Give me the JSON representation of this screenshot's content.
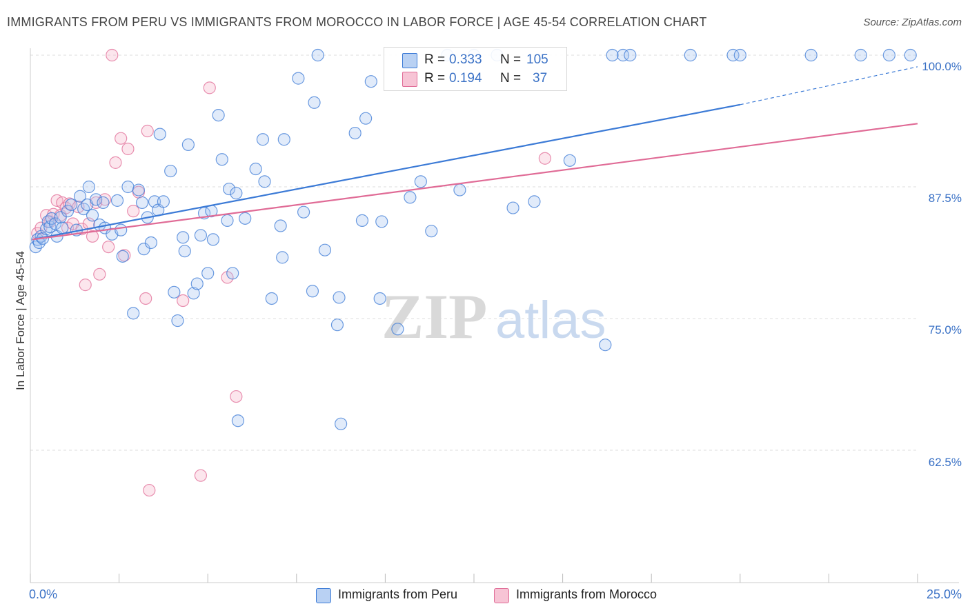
{
  "title": "IMMIGRANTS FROM PERU VS IMMIGRANTS FROM MOROCCO IN LABOR FORCE | AGE 45-54 CORRELATION CHART",
  "source": "Source: ZipAtlas.com",
  "watermark": {
    "zip": "ZIP",
    "atlas": "atlas"
  },
  "legend": {
    "peru": {
      "r_label": "R =",
      "r_value": "0.333",
      "n_label": "N =",
      "n_value": "105"
    },
    "morocco": {
      "r_label": "R =",
      "r_value": "0.194",
      "n_label": "N =",
      "n_value": "37"
    }
  },
  "colors": {
    "peru": "#3b7ad6",
    "peru_fill": "#a9c6f0",
    "morocco": "#e06b96",
    "morocco_fill": "#f5b8cc",
    "tick_text": "#3b72c6"
  },
  "chart_data": {
    "type": "scatter",
    "title": "IMMIGRANTS FROM PERU VS IMMIGRANTS FROM MOROCCO IN LABOR FORCE | AGE 45-54 CORRELATION CHART",
    "xlabel": "",
    "ylabel": "In Labor Force | Age 45-54",
    "xlim": [
      0,
      25
    ],
    "ylim": [
      50.5,
      101
    ],
    "x_tick_labels": [
      "0.0%",
      "25.0%"
    ],
    "y_ticks": [
      62.5,
      75.0,
      87.5,
      100.0
    ],
    "y_tick_labels": [
      "62.5%",
      "75.0%",
      "87.5%",
      "100.0%"
    ],
    "grid": true,
    "legend_position": "top-center",
    "series": [
      {
        "name": "Immigrants from Peru",
        "trend": {
          "x0": 0.05,
          "y0": 82.5,
          "x1": 20,
          "y1": 95.3,
          "dash_to_x": 25,
          "dash_to_y": 98.9
        },
        "points": [
          [
            0.15,
            81.8
          ],
          [
            0.2,
            82.5
          ],
          [
            0.25,
            82.2
          ],
          [
            0.3,
            82.8
          ],
          [
            0.35,
            82.6
          ],
          [
            0.45,
            83.5
          ],
          [
            0.5,
            84.2
          ],
          [
            0.55,
            83.7
          ],
          [
            0.6,
            84.5
          ],
          [
            0.7,
            84.0
          ],
          [
            0.75,
            82.8
          ],
          [
            0.85,
            84.6
          ],
          [
            0.9,
            83.6
          ],
          [
            1.05,
            85.2
          ],
          [
            1.15,
            85.8
          ],
          [
            1.3,
            83.4
          ],
          [
            1.4,
            86.6
          ],
          [
            1.5,
            85.4
          ],
          [
            1.6,
            85.8
          ],
          [
            1.65,
            87.5
          ],
          [
            1.75,
            84.8
          ],
          [
            1.85,
            86.3
          ],
          [
            1.95,
            83.9
          ],
          [
            2.05,
            86.0
          ],
          [
            2.1,
            83.6
          ],
          [
            2.3,
            83.0
          ],
          [
            2.45,
            86.2
          ],
          [
            2.55,
            83.4
          ],
          [
            2.6,
            80.9
          ],
          [
            2.75,
            87.5
          ],
          [
            2.9,
            75.5
          ],
          [
            3.05,
            87.2
          ],
          [
            3.15,
            86.0
          ],
          [
            3.2,
            81.6
          ],
          [
            3.3,
            84.6
          ],
          [
            3.4,
            82.2
          ],
          [
            3.5,
            86.1
          ],
          [
            3.6,
            85.3
          ],
          [
            3.65,
            92.5
          ],
          [
            3.75,
            86.1
          ],
          [
            3.95,
            89.0
          ],
          [
            4.05,
            77.5
          ],
          [
            4.15,
            74.8
          ],
          [
            4.3,
            82.7
          ],
          [
            4.35,
            81.4
          ],
          [
            4.45,
            91.5
          ],
          [
            4.6,
            77.4
          ],
          [
            4.7,
            78.3
          ],
          [
            4.8,
            82.9
          ],
          [
            4.9,
            85.0
          ],
          [
            5.0,
            79.3
          ],
          [
            5.1,
            85.2
          ],
          [
            5.15,
            82.5
          ],
          [
            5.3,
            94.3
          ],
          [
            5.4,
            90.1
          ],
          [
            5.55,
            84.3
          ],
          [
            5.6,
            87.3
          ],
          [
            5.7,
            79.3
          ],
          [
            5.8,
            86.9
          ],
          [
            5.85,
            65.3
          ],
          [
            6.05,
            84.5
          ],
          [
            6.35,
            89.2
          ],
          [
            6.55,
            92.0
          ],
          [
            6.6,
            88.0
          ],
          [
            6.8,
            76.9
          ],
          [
            7.05,
            83.8
          ],
          [
            7.1,
            80.8
          ],
          [
            7.15,
            92.0
          ],
          [
            7.55,
            97.8
          ],
          [
            7.7,
            85.1
          ],
          [
            7.95,
            77.6
          ],
          [
            8.0,
            95.5
          ],
          [
            8.1,
            100.0
          ],
          [
            8.3,
            81.5
          ],
          [
            8.65,
            74.4
          ],
          [
            8.7,
            77.0
          ],
          [
            8.75,
            65.0
          ],
          [
            9.15,
            92.6
          ],
          [
            9.35,
            84.3
          ],
          [
            9.45,
            94.0
          ],
          [
            9.6,
            97.5
          ],
          [
            9.85,
            76.9
          ],
          [
            9.9,
            84.2
          ],
          [
            10.35,
            74.0
          ],
          [
            11.3,
            83.3
          ],
          [
            11.75,
            100.0
          ],
          [
            12.5,
            100.0
          ],
          [
            13.15,
            100.0
          ],
          [
            15.2,
            90.0
          ],
          [
            16.2,
            72.5
          ],
          [
            16.4,
            100.0
          ],
          [
            16.7,
            100.0
          ],
          [
            16.9,
            100.0
          ],
          [
            18.6,
            100.0
          ],
          [
            19.8,
            100.0
          ],
          [
            20.0,
            100.0
          ],
          [
            22.0,
            100.0
          ],
          [
            23.4,
            100.0
          ],
          [
            24.2,
            100.0
          ],
          [
            24.8,
            100.0
          ],
          [
            10.7,
            86.5
          ],
          [
            11.0,
            88.0
          ],
          [
            12.1,
            87.2
          ],
          [
            13.6,
            85.5
          ],
          [
            14.2,
            86.1
          ]
        ]
      },
      {
        "name": "Immigrants from Morocco",
        "trend": {
          "x0": 0.05,
          "y0": 82.5,
          "x1": 25,
          "y1": 93.5
        },
        "points": [
          [
            0.2,
            83.1
          ],
          [
            0.3,
            83.6
          ],
          [
            0.45,
            84.8
          ],
          [
            0.55,
            84.2
          ],
          [
            0.65,
            84.9
          ],
          [
            0.75,
            86.2
          ],
          [
            0.85,
            84.8
          ],
          [
            0.9,
            86.0
          ],
          [
            1.0,
            85.5
          ],
          [
            1.05,
            83.6
          ],
          [
            1.1,
            85.9
          ],
          [
            1.2,
            84.0
          ],
          [
            1.35,
            85.6
          ],
          [
            1.45,
            83.5
          ],
          [
            1.55,
            78.2
          ],
          [
            1.65,
            84.0
          ],
          [
            1.75,
            82.8
          ],
          [
            1.85,
            86.0
          ],
          [
            1.95,
            79.2
          ],
          [
            2.1,
            86.3
          ],
          [
            2.2,
            81.8
          ],
          [
            2.3,
            100.0
          ],
          [
            2.4,
            89.8
          ],
          [
            2.55,
            92.1
          ],
          [
            2.65,
            81.0
          ],
          [
            2.75,
            91.1
          ],
          [
            2.9,
            85.2
          ],
          [
            3.05,
            87.0
          ],
          [
            3.25,
            76.9
          ],
          [
            3.3,
            92.8
          ],
          [
            3.35,
            58.7
          ],
          [
            4.3,
            76.7
          ],
          [
            4.8,
            60.1
          ],
          [
            5.05,
            96.9
          ],
          [
            5.55,
            78.9
          ],
          [
            5.8,
            67.6
          ],
          [
            14.5,
            90.2
          ]
        ]
      }
    ]
  },
  "bottom_legend": {
    "peru": "Immigrants from Peru",
    "morocco": "Immigrants from Morocco"
  }
}
